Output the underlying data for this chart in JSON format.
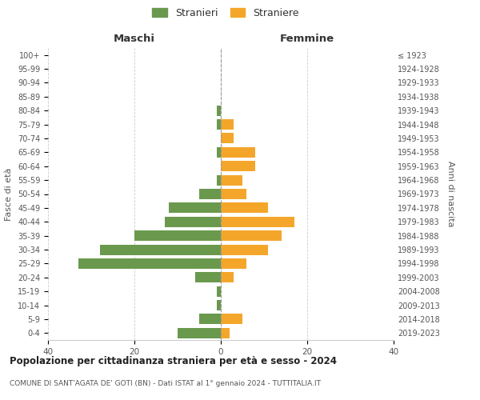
{
  "age_groups": [
    "0-4",
    "5-9",
    "10-14",
    "15-19",
    "20-24",
    "25-29",
    "30-34",
    "35-39",
    "40-44",
    "45-49",
    "50-54",
    "55-59",
    "60-64",
    "65-69",
    "70-74",
    "75-79",
    "80-84",
    "85-89",
    "90-94",
    "95-99",
    "100+"
  ],
  "birth_years": [
    "2019-2023",
    "2014-2018",
    "2009-2013",
    "2004-2008",
    "1999-2003",
    "1994-1998",
    "1989-1993",
    "1984-1988",
    "1979-1983",
    "1974-1978",
    "1969-1973",
    "1964-1968",
    "1959-1963",
    "1954-1958",
    "1949-1953",
    "1944-1948",
    "1939-1943",
    "1934-1938",
    "1929-1933",
    "1924-1928",
    "≤ 1923"
  ],
  "maschi": [
    10,
    5,
    1,
    1,
    6,
    33,
    28,
    20,
    13,
    12,
    5,
    1,
    0,
    1,
    0,
    1,
    1,
    0,
    0,
    0,
    0
  ],
  "femmine": [
    2,
    5,
    0,
    0,
    3,
    6,
    11,
    14,
    17,
    11,
    6,
    5,
    8,
    8,
    3,
    3,
    0,
    0,
    0,
    0,
    0
  ],
  "maschi_color": "#6a994e",
  "femmine_color": "#f4a62a",
  "background_color": "#ffffff",
  "grid_color": "#cccccc",
  "title": "Popolazione per cittadinanza straniera per età e sesso - 2024",
  "subtitle": "COMUNE DI SANT'AGATA DE' GOTI (BN) - Dati ISTAT al 1° gennaio 2024 - TUTTITALIA.IT",
  "maschi_label": "Stranieri",
  "femmine_label": "Straniere",
  "xlabel_left": "Maschi",
  "xlabel_right": "Femmine",
  "ylabel_left": "Fasce di età",
  "ylabel_right": "Anni di nascita",
  "xlim": 40
}
